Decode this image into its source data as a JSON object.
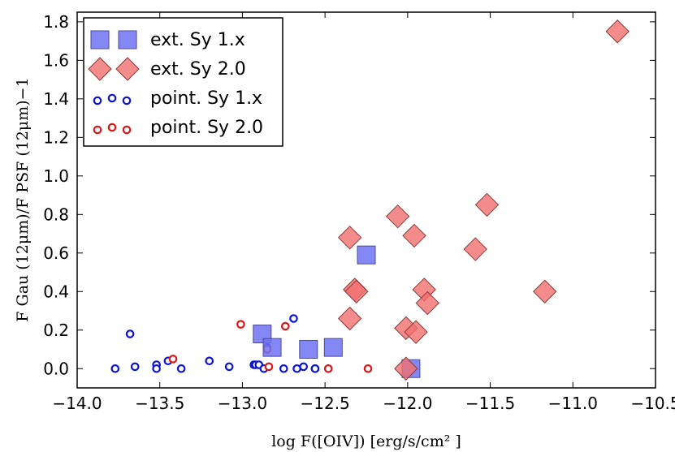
{
  "chart_data": {
    "type": "scatter",
    "title": "",
    "xlabel": "log F([OIV]) [erg/s/cm² ]",
    "ylabel": "F Gau (12μm)/F PSF (12μm)−1",
    "xlim": [
      -14.0,
      -10.5
    ],
    "ylim": [
      -0.1,
      1.85
    ],
    "x_ticks": [
      -14.0,
      -13.5,
      -13.0,
      -12.5,
      -12.0,
      -11.5,
      -11.0,
      -10.5
    ],
    "x_tick_labels": [
      "−14.0",
      "−13.5",
      "−13.0",
      "−12.5",
      "−12.0",
      "−11.5",
      "−11.0",
      "−10.5"
    ],
    "y_ticks": [
      0.0,
      0.2,
      0.4,
      0.6,
      0.8,
      1.0,
      1.2,
      1.4,
      1.6,
      1.8
    ],
    "y_tick_labels": [
      "0.0",
      "0.2",
      "0.4",
      "0.6",
      "0.8",
      "1.0",
      "1.2",
      "1.4",
      "1.6",
      "1.8"
    ],
    "legend_position": "top-left",
    "series": [
      {
        "name": "ext. Sy 1.x",
        "marker": "square",
        "color": "#6f73f2",
        "points": [
          [
            -12.88,
            0.18
          ],
          [
            -12.82,
            0.11
          ],
          [
            -12.6,
            0.1
          ],
          [
            -12.45,
            0.11
          ],
          [
            -12.25,
            0.59
          ],
          [
            -11.98,
            0.0
          ]
        ]
      },
      {
        "name": "ext. Sy 2.0",
        "marker": "diamond",
        "color": "#f36f6f",
        "points": [
          [
            -12.35,
            0.68
          ],
          [
            -12.32,
            0.41
          ],
          [
            -12.31,
            0.4
          ],
          [
            -12.35,
            0.26
          ],
          [
            -12.06,
            0.79
          ],
          [
            -11.96,
            0.69
          ],
          [
            -11.9,
            0.41
          ],
          [
            -11.88,
            0.34
          ],
          [
            -12.01,
            0.21
          ],
          [
            -11.95,
            0.19
          ],
          [
            -12.01,
            0.0
          ],
          [
            -11.59,
            0.62
          ],
          [
            -11.52,
            0.85
          ],
          [
            -11.17,
            0.4
          ],
          [
            -10.73,
            1.75
          ]
        ]
      },
      {
        "name": "point. Sy 1.x",
        "marker": "ring",
        "color": "#0b14d6",
        "points": [
          [
            -13.77,
            0.0
          ],
          [
            -13.68,
            0.18
          ],
          [
            -13.65,
            0.01
          ],
          [
            -13.52,
            0.02
          ],
          [
            -13.52,
            0.0
          ],
          [
            -13.45,
            0.04
          ],
          [
            -13.37,
            0.0
          ],
          [
            -13.2,
            0.04
          ],
          [
            -13.08,
            0.01
          ],
          [
            -12.93,
            0.02
          ],
          [
            -12.92,
            0.02
          ],
          [
            -12.9,
            0.02
          ],
          [
            -12.87,
            0.0
          ],
          [
            -12.85,
            0.11
          ],
          [
            -12.75,
            0.0
          ],
          [
            -12.69,
            0.26
          ],
          [
            -12.67,
            0.0
          ],
          [
            -12.63,
            0.01
          ],
          [
            -12.56,
            0.0
          ],
          [
            -12.56,
            0.0
          ]
        ]
      },
      {
        "name": "point. Sy 2.0",
        "marker": "ring",
        "color": "#e11414",
        "points": [
          [
            -13.42,
            0.05
          ],
          [
            -13.01,
            0.23
          ],
          [
            -12.85,
            0.1
          ],
          [
            -12.84,
            0.01
          ],
          [
            -12.74,
            0.22
          ],
          [
            -12.48,
            0.0
          ],
          [
            -12.24,
            0.0
          ]
        ]
      }
    ]
  }
}
